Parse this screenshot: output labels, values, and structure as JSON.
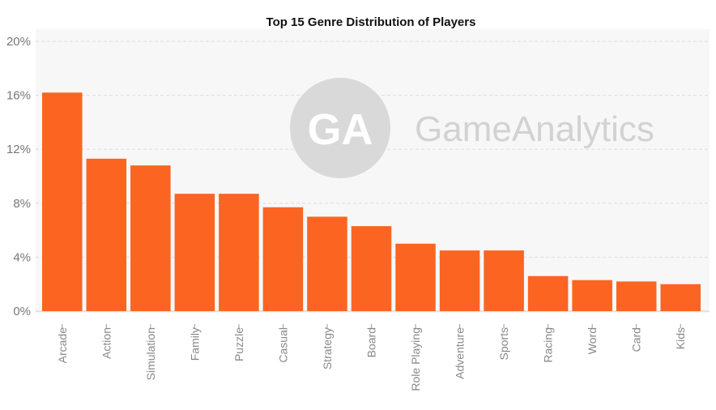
{
  "chart_data": {
    "type": "bar",
    "title": "Top 15 Genre Distribution of Players",
    "categories": [
      "Arcade",
      "Action",
      "Simulation",
      "Family",
      "Puzzle",
      "Casual",
      "Strategy",
      "Board",
      "Role Playing",
      "Adventure",
      "Sports",
      "Racing",
      "Word",
      "Card",
      "Kids"
    ],
    "values": [
      16.2,
      11.3,
      10.8,
      8.7,
      8.7,
      7.7,
      7.0,
      6.3,
      5.0,
      4.5,
      4.5,
      2.6,
      2.3,
      2.2,
      2.0
    ],
    "value_unit": "%",
    "ylim": [
      0,
      20
    ],
    "yticks": [
      0,
      4,
      8,
      12,
      16,
      20
    ],
    "ytick_labels": [
      "0%",
      "4%",
      "8%",
      "12%",
      "16%",
      "20%"
    ],
    "xlabel": "",
    "ylabel": "",
    "grid": true,
    "bar_color": "#fb6521"
  },
  "watermark": {
    "logo_text": "GA",
    "brand_text": "GameAnalytics"
  }
}
